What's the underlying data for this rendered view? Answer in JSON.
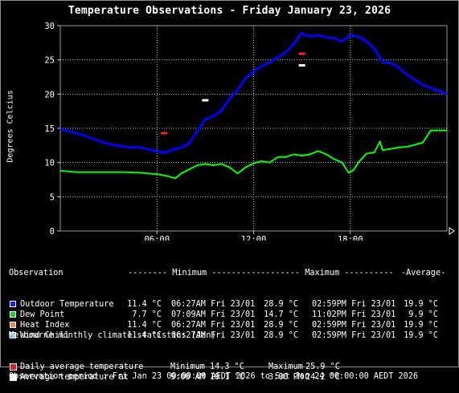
{
  "chart_data": {
    "type": "line",
    "title": "Temperature Observations - Friday January 23, 2026",
    "ylabel": "Degrees Celcius",
    "xlabel": "",
    "ylim": [
      0,
      30
    ],
    "yticks": [
      0,
      5,
      10,
      15,
      20,
      25,
      30
    ],
    "xlim_hours": [
      0,
      24
    ],
    "xticks": [
      {
        "hour": 6,
        "label": "06:00"
      },
      {
        "hour": 12,
        "label": "12:00"
      },
      {
        "hour": 18,
        "label": "18:00"
      }
    ],
    "grid": true,
    "series": [
      {
        "name": "Outdoor Temperature",
        "color": "#0000ff",
        "x": [
          0,
          1,
          2,
          3,
          4,
          5,
          5.5,
          6.45,
          7,
          7.5,
          8,
          8.5,
          9,
          9.5,
          10,
          10.5,
          11,
          11.5,
          12,
          12.5,
          13,
          13.5,
          14,
          14.5,
          14.98,
          15.5,
          16,
          16.5,
          17,
          17.5,
          18,
          18.5,
          19,
          19.5,
          20,
          20.5,
          21,
          21.5,
          22,
          22.5,
          23,
          23.5,
          24
        ],
        "y": [
          14.9,
          14.3,
          13.5,
          12.7,
          12.3,
          12.2,
          11.9,
          11.4,
          11.9,
          12.2,
          12.8,
          14.6,
          16.3,
          16.8,
          17.6,
          19.3,
          20.6,
          22.3,
          23.3,
          24.1,
          24.6,
          25.4,
          26.1,
          27.4,
          28.9,
          28.4,
          28.6,
          28.3,
          28.2,
          27.7,
          28.6,
          28.4,
          27.7,
          26.6,
          24.7,
          24.5,
          23.9,
          22.9,
          22.1,
          21.3,
          20.9,
          20.5,
          20.0
        ]
      },
      {
        "name": "Dew Point",
        "color": "#00ff00",
        "x": [
          0,
          1,
          2,
          3,
          4,
          5,
          6,
          6.5,
          7.15,
          7.5,
          8,
          8.5,
          9,
          9.5,
          10,
          10.5,
          11,
          11.5,
          12,
          12.5,
          13,
          13.5,
          14,
          14.5,
          15,
          15.5,
          16,
          16.5,
          17,
          17.5,
          17.9,
          18.2,
          18.5,
          19,
          19.5,
          19.85,
          20,
          20.5,
          21,
          21.5,
          22,
          22.5,
          23,
          23.5,
          24
        ],
        "y": [
          8.8,
          8.6,
          8.6,
          8.6,
          8.6,
          8.5,
          8.3,
          8.1,
          7.7,
          8.4,
          9.0,
          9.6,
          9.8,
          9.6,
          9.8,
          9.3,
          8.4,
          9.3,
          9.9,
          10.2,
          10.0,
          10.8,
          10.8,
          11.2,
          11.0,
          11.2,
          11.7,
          11.2,
          10.5,
          10.0,
          8.5,
          8.9,
          10.0,
          11.3,
          11.5,
          13.1,
          11.8,
          12.0,
          12.2,
          12.3,
          12.6,
          12.9,
          14.7,
          14.7,
          14.7
        ]
      }
    ],
    "markers": [
      {
        "name": "Daily average temperature minimum",
        "color": "#ff2020",
        "hour": 6.45,
        "value": 14.3
      },
      {
        "name": "Daily average temperature maximum",
        "color": "#ff2020",
        "hour": 15.0,
        "value": 25.9
      },
      {
        "name": "Average temperature at 9:00 AM",
        "color": "#ffffff",
        "hour": 9.0,
        "value": 19.1
      },
      {
        "name": "Average temperature at 3:00 PM",
        "color": "#ffffff",
        "hour": 15.0,
        "value": 24.2
      }
    ]
  },
  "stats_table": {
    "header": {
      "observation": "Observation",
      "minimum": "-------- Minimum ----------",
      "maximum": "-------- Maximum ----------",
      "average": "-Average-"
    },
    "rows": [
      {
        "color": "#1a1aff",
        "name": "Outdoor Temperature",
        "min": "11.4 °C",
        "min_time": "06:27AM Fri 23/01",
        "max": "28.9 °C",
        "max_time": "02:59PM Fri 23/01",
        "avg": "19.9 °C"
      },
      {
        "color": "#20d020",
        "name": "Dew Point",
        "min": "7.7 °C",
        "min_time": "07:09AM Fri 23/01",
        "max": "14.7 °C",
        "max_time": "11:02PM Fri 23/01",
        "avg": "9.9 °C"
      },
      {
        "color": "#f08a3c",
        "name": "Heat Index",
        "min": "11.4 °C",
        "min_time": "06:27AM Fri 23/01",
        "max": "28.9 °C",
        "max_time": "02:59PM Fri 23/01",
        "avg": "19.9 °C"
      },
      {
        "color": "#4aa8e8",
        "name": "Wind Chill",
        "min": "11.4 °C",
        "min_time": "06:27AM Fri 23/01",
        "max": "28.9 °C",
        "max_time": "02:59PM Fri 23/01",
        "avg": "19.9 °C"
      }
    ]
  },
  "climate": {
    "heading": "Melbourne monthly climate statistics (Jan)",
    "rows": [
      {
        "color": "#e02020",
        "label": "Daily average temperature",
        "a_label": "Minimum",
        "a_value": "14.3 °C",
        "b_label": "Maximum",
        "b_value": "25.9 °C"
      },
      {
        "color": "#ffffff",
        "label": "Average temperature at",
        "a_label": "9:00 AM",
        "a_value": "19.1 °C",
        "b_label": "3:00 PM",
        "b_value": "24.2 °C"
      }
    ]
  },
  "period": "Observation period : Fri Jan 23 00:00:00 AEDT 2026 to Sat Jan 24 00:00:00 AEDT 2026"
}
